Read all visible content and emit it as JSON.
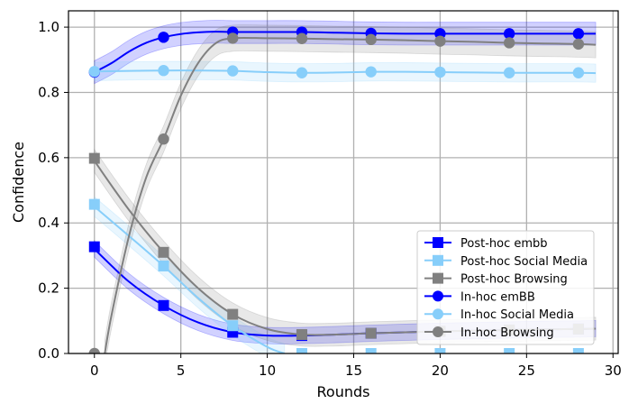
{
  "chart_data": {
    "type": "line",
    "xlabel": "Rounds",
    "ylabel": "Confidence",
    "xlim": [
      -1.5,
      30.3
    ],
    "ylim": [
      0,
      1.05
    ],
    "xticks": [
      "0",
      "5",
      "10",
      "15",
      "20",
      "25",
      "30"
    ],
    "yticks": [
      "0.0",
      "0.2",
      "0.4",
      "0.6",
      "0.8",
      "1.0"
    ],
    "grid": true,
    "legend_position": "lower-right",
    "series": [
      {
        "name": "Post-hoc embb",
        "color": "#0000ff",
        "marker": "square",
        "x": [
          0,
          4,
          8,
          12,
          16,
          20,
          24,
          28
        ],
        "y": [
          0.327,
          0.147,
          0.065,
          0.055,
          0.062,
          0.068,
          0.072,
          0.075
        ],
        "curve_x": [
          0,
          2,
          4,
          6,
          8,
          10,
          12,
          14,
          16,
          18,
          20,
          22,
          24,
          26,
          28,
          29
        ],
        "curve_y": [
          0.32,
          0.22,
          0.147,
          0.095,
          0.065,
          0.055,
          0.055,
          0.058,
          0.062,
          0.065,
          0.068,
          0.07,
          0.072,
          0.074,
          0.075,
          0.076
        ],
        "band": 0.025
      },
      {
        "name": "Post-hoc Social Media",
        "color": "#87cefa",
        "marker": "square",
        "x": [
          0,
          4,
          8,
          12,
          16,
          20,
          24,
          28
        ],
        "y": [
          0.457,
          0.268,
          0.085,
          0.0,
          0.0,
          0.0,
          0.0,
          0.0
        ],
        "curve_x": [
          0,
          2,
          4,
          6,
          8,
          10,
          11
        ],
        "curve_y": [
          0.45,
          0.36,
          0.268,
          0.17,
          0.085,
          0.02,
          0.0
        ],
        "band": 0.03
      },
      {
        "name": "Post-hoc Browsing",
        "color": "#808080",
        "marker": "square",
        "x": [
          0,
          4,
          8,
          12,
          16,
          20,
          24,
          28
        ],
        "y": [
          0.598,
          0.31,
          0.12,
          0.058,
          0.062,
          0.068,
          0.072,
          0.075
        ],
        "curve_x": [
          0,
          2,
          4,
          6,
          8,
          10,
          12,
          14,
          16,
          18,
          20,
          22,
          24,
          26,
          28,
          29
        ],
        "curve_y": [
          0.59,
          0.44,
          0.31,
          0.2,
          0.12,
          0.075,
          0.058,
          0.058,
          0.062,
          0.065,
          0.068,
          0.07,
          0.072,
          0.074,
          0.075,
          0.076
        ],
        "band": 0.035
      },
      {
        "name": "In-hoc emBB",
        "color": "#0000ff",
        "marker": "circle",
        "x": [
          0,
          4,
          8,
          12,
          16,
          20,
          24,
          28
        ],
        "y": [
          0.862,
          0.969,
          0.985,
          0.985,
          0.981,
          0.98,
          0.98,
          0.98
        ],
        "curve_x": [
          0,
          1,
          2,
          3,
          4,
          5,
          6,
          7,
          8,
          10,
          12,
          14,
          16,
          18,
          20,
          22,
          24,
          26,
          28,
          29
        ],
        "curve_y": [
          0.862,
          0.89,
          0.925,
          0.952,
          0.969,
          0.979,
          0.984,
          0.986,
          0.985,
          0.985,
          0.985,
          0.983,
          0.981,
          0.98,
          0.98,
          0.98,
          0.98,
          0.98,
          0.98,
          0.98
        ],
        "band": 0.035
      },
      {
        "name": "In-hoc Social Media",
        "color": "#87cefa",
        "marker": "circle",
        "x": [
          0,
          4,
          8,
          12,
          16,
          20,
          24,
          28
        ],
        "y": [
          0.864,
          0.867,
          0.866,
          0.86,
          0.863,
          0.862,
          0.86,
          0.86
        ],
        "curve_x": [
          0,
          2,
          4,
          6,
          8,
          10,
          12,
          14,
          16,
          18,
          20,
          22,
          24,
          26,
          28,
          29
        ],
        "curve_y": [
          0.864,
          0.866,
          0.867,
          0.867,
          0.866,
          0.862,
          0.86,
          0.861,
          0.863,
          0.863,
          0.862,
          0.861,
          0.86,
          0.86,
          0.86,
          0.859
        ],
        "band": 0.028
      },
      {
        "name": "In-hoc Browsing",
        "color": "#808080",
        "marker": "circle",
        "x": [
          0,
          4,
          8,
          12,
          16,
          20,
          24,
          28
        ],
        "y": [
          0.0,
          0.657,
          0.966,
          0.965,
          0.962,
          0.957,
          0.952,
          0.948
        ],
        "curve_x": [
          0.6,
          1,
          2,
          3,
          4,
          5,
          6,
          7,
          8,
          10,
          12,
          14,
          16,
          18,
          20,
          22,
          24,
          26,
          28,
          29
        ],
        "curve_y": [
          0.0,
          0.12,
          0.36,
          0.54,
          0.657,
          0.79,
          0.89,
          0.95,
          0.966,
          0.966,
          0.965,
          0.963,
          0.962,
          0.96,
          0.957,
          0.955,
          0.952,
          0.95,
          0.948,
          0.946
        ],
        "band": 0.04
      }
    ]
  }
}
